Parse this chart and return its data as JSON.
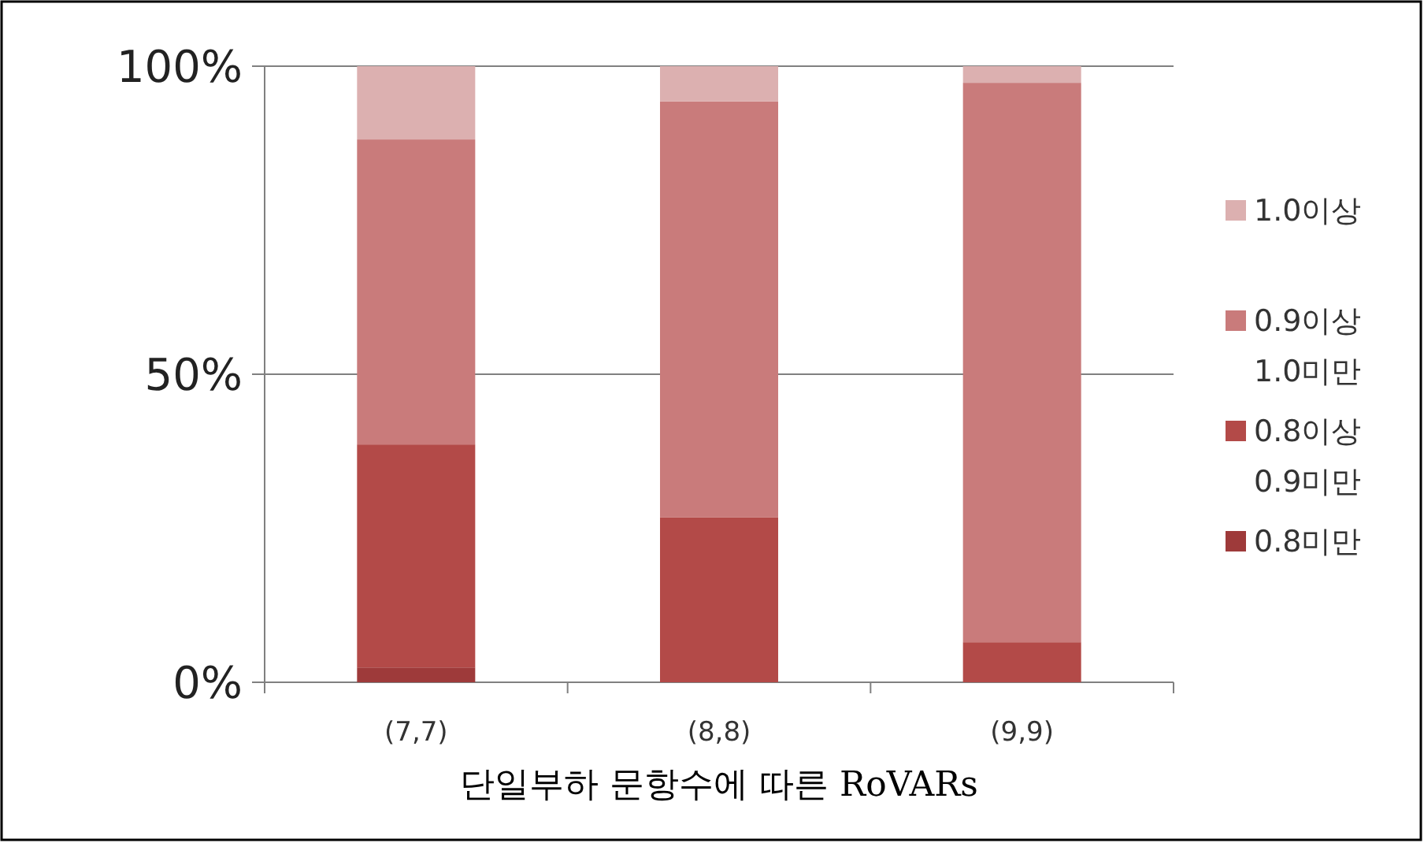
{
  "chart_data": {
    "type": "bar",
    "stacked": true,
    "xlabel": "단일부하 문항수에 따른 RoVARs",
    "categories": [
      "(7,7)",
      "(8,8)",
      "(9,9)"
    ],
    "series": [
      {
        "name": "0.8미만",
        "color": "#9e3a3a",
        "values": [
          2.4,
          0,
          0
        ]
      },
      {
        "name": "0.8이상 0.9미만",
        "color": "#b34a48",
        "values": [
          36.2,
          26.8,
          6.5
        ]
      },
      {
        "name": "0.9이상 1.0미만",
        "color": "#c97b7b",
        "values": [
          49.5,
          67.5,
          90.8
        ]
      },
      {
        "name": "1.0이상",
        "color": "#dcb0b0",
        "values": [
          11.9,
          5.7,
          2.7
        ]
      }
    ],
    "ylim": [
      0,
      100
    ],
    "yticks": [
      {
        "value": 0,
        "label": "0%"
      },
      {
        "value": 50,
        "label": "50%"
      },
      {
        "value": 100,
        "label": "100%"
      }
    ],
    "grid": "y",
    "legend": "right"
  }
}
